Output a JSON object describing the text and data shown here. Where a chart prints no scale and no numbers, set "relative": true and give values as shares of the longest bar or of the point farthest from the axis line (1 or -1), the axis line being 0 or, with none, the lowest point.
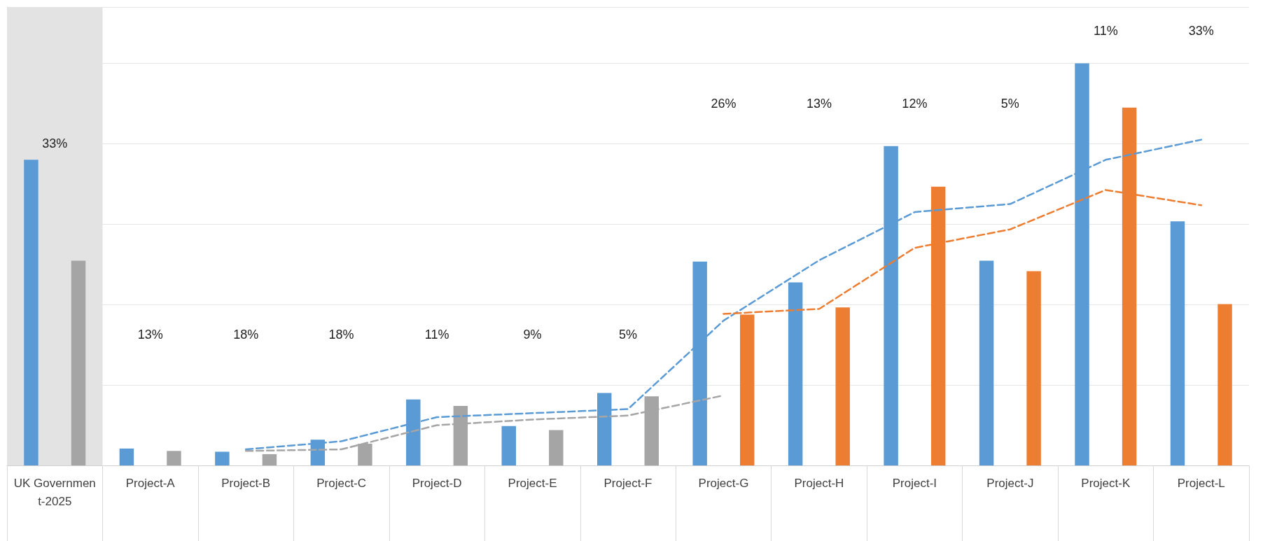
{
  "chart_data": {
    "type": "bar",
    "relative": true,
    "grid": "y",
    "categories": [
      "UK Government-2025",
      "Project-A",
      "Project-B",
      "Project-C",
      "Project-D",
      "Project-E",
      "Project-F",
      "Project-G",
      "Project-H",
      "Project-I",
      "Project-J",
      "Project-K",
      "Project-L"
    ],
    "series": [
      {
        "color": "#5b9bd5",
        "values": [
          0.76,
          0.042,
          0.034,
          0.064,
          0.164,
          0.098,
          0.18,
          0.507,
          0.455,
          0.794,
          0.509,
          1,
          0.607
        ]
      },
      {
        "colors": [
          "#a5a5a5",
          "#a5a5a5",
          "#a5a5a5",
          "#a5a5a5",
          "#a5a5a5",
          "#a5a5a5",
          "#a5a5a5",
          "#ed7d31",
          "#ed7d31",
          "#ed7d31",
          "#ed7d31",
          "#ed7d31",
          "#ed7d31"
        ],
        "values": [
          0.509,
          0.036,
          0.028,
          0.054,
          0.148,
          0.088,
          0.172,
          0.375,
          0.393,
          0.693,
          0.483,
          0.89,
          0.401
        ]
      },
      {
        "type": "line",
        "color": "#5b9bd5",
        "line_style": "dashed",
        "marker": "none",
        "values": [
          null,
          null,
          0.04,
          0.06,
          0.12,
          0.13,
          0.14,
          0.36,
          0.51,
          0.63,
          0.65,
          0.76,
          0.81
        ]
      },
      {
        "type": "line",
        "color": "#a5a5a5",
        "line_style": "dashed",
        "marker": "none",
        "values": [
          null,
          null,
          0.036,
          0.04,
          0.1,
          0.114,
          0.124,
          0.174,
          null,
          null,
          null,
          null,
          null
        ]
      },
      {
        "type": "line",
        "color": "#ed7d31",
        "line_style": "dashed",
        "marker": "none",
        "values": [
          null,
          null,
          null,
          null,
          null,
          null,
          null,
          0.377,
          0.389,
          0.541,
          0.587,
          0.685,
          0.647
        ]
      }
    ],
    "bands": [
      {
        "axis": "x",
        "from": "UK Government-2025",
        "to": "UK Government-2025",
        "color": "#e3e3e3"
      }
    ],
    "annotations": [
      "33%",
      "13%",
      "18%",
      "18%",
      "11%",
      "9%",
      "5%",
      "26%",
      "13%",
      "12%",
      "5%",
      "11%",
      "33%"
    ]
  }
}
